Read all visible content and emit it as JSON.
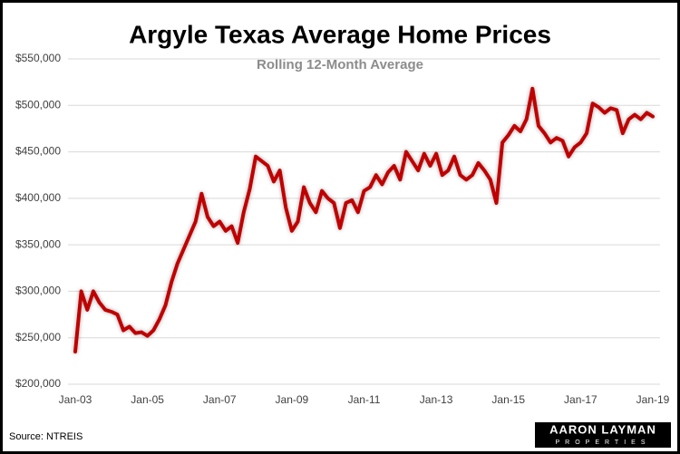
{
  "chart_data": {
    "type": "line",
    "title": "Argyle Texas Average Home Prices",
    "subtitle": "Rolling 12-Month Average",
    "source": "Source: NTREIS",
    "logo": {
      "name": "AARON LAYMAN",
      "sub": "PROPERTIES"
    },
    "color": "#c00000",
    "categories": [
      "Jan-03",
      null,
      null,
      null,
      null,
      null,
      null,
      null,
      null,
      null,
      null,
      null,
      "Jan-05",
      null,
      null,
      null,
      null,
      null,
      null,
      null,
      null,
      null,
      null,
      null,
      "Jan-07",
      null,
      null,
      null,
      null,
      null,
      null,
      null,
      null,
      null,
      null,
      null,
      "Jan-09",
      null,
      null,
      null,
      null,
      null,
      null,
      null,
      null,
      null,
      null,
      null,
      "Jan-11",
      null,
      null,
      null,
      null,
      null,
      null,
      null,
      null,
      null,
      null,
      null,
      "Jan-13",
      null,
      null,
      null,
      null,
      null,
      null,
      null,
      null,
      null,
      null,
      null,
      "Jan-15",
      null,
      null,
      null,
      null,
      null,
      null,
      null,
      null,
      null,
      null,
      null,
      "Jan-17",
      null,
      null,
      null,
      null,
      null,
      null,
      null,
      null,
      null,
      null,
      null,
      "Jan-19"
    ],
    "values": [
      235000,
      300000,
      280000,
      300000,
      288000,
      280000,
      278000,
      275000,
      258000,
      262000,
      255000,
      256000,
      252000,
      258000,
      270000,
      285000,
      310000,
      330000,
      345000,
      360000,
      375000,
      405000,
      380000,
      370000,
      375000,
      365000,
      370000,
      352000,
      385000,
      410000,
      445000,
      440000,
      435000,
      418000,
      430000,
      390000,
      365000,
      375000,
      412000,
      395000,
      385000,
      408000,
      400000,
      395000,
      368000,
      395000,
      398000,
      385000,
      408000,
      412000,
      425000,
      415000,
      428000,
      435000,
      420000,
      450000,
      440000,
      430000,
      448000,
      435000,
      448000,
      425000,
      430000,
      445000,
      425000,
      420000,
      425000,
      438000,
      430000,
      420000,
      395000,
      460000,
      468000,
      478000,
      472000,
      485000,
      518000,
      478000,
      470000,
      460000,
      465000,
      462000,
      445000,
      455000,
      460000,
      470000,
      502000,
      498000,
      492000,
      497000,
      495000,
      470000,
      485000,
      490000,
      485000,
      492000,
      488000
    ],
    "ylim": [
      200000,
      550000
    ],
    "yticks": [
      {
        "value": 200000,
        "label": "$200,000"
      },
      {
        "value": 250000,
        "label": "$250,000"
      },
      {
        "value": 300000,
        "label": "$300,000"
      },
      {
        "value": 350000,
        "label": "$350,000"
      },
      {
        "value": 400000,
        "label": "$400,000"
      },
      {
        "value": 450000,
        "label": "$450,000"
      },
      {
        "value": 500000,
        "label": "$500,000"
      },
      {
        "value": 550000,
        "label": "$550,000"
      }
    ],
    "grid": true
  }
}
